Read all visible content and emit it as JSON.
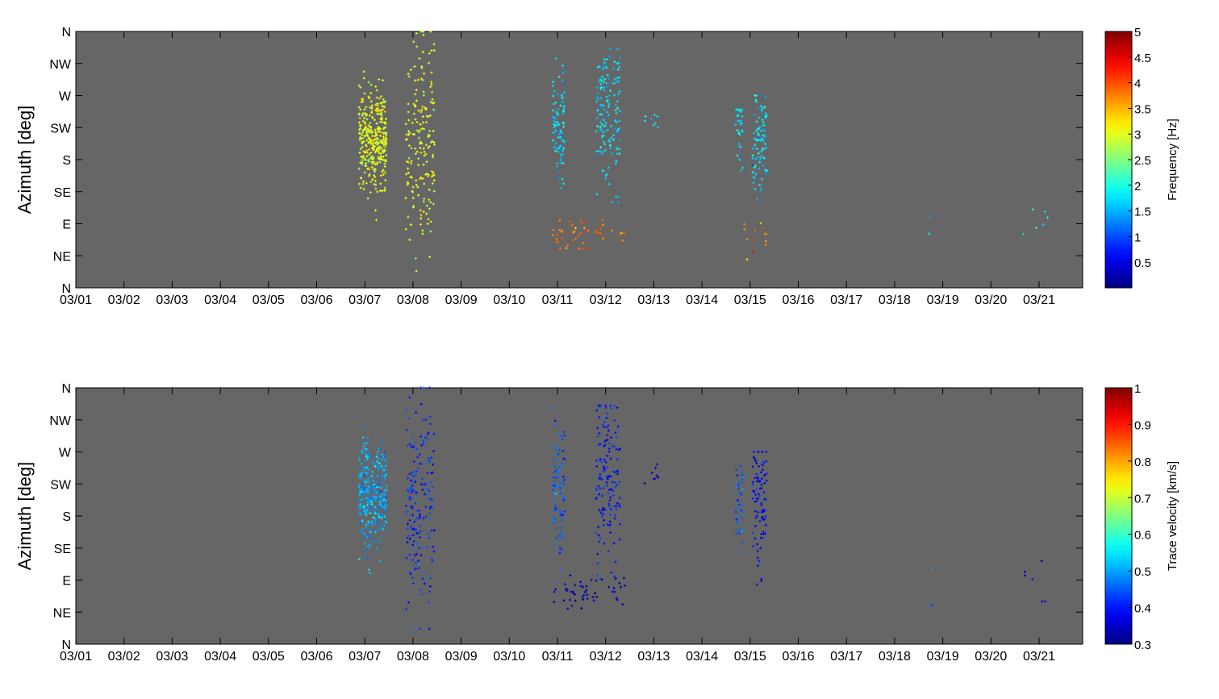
{
  "chart_data": [
    {
      "type": "scatter",
      "ylabel": "Azimuth [deg]",
      "x_ticks": [
        "03/01",
        "03/02",
        "03/03",
        "03/04",
        "03/05",
        "03/06",
        "03/07",
        "03/08",
        "03/09",
        "03/10",
        "03/11",
        "03/12",
        "03/13",
        "03/14",
        "03/15",
        "03/16",
        "03/17",
        "03/18",
        "03/19",
        "03/20",
        "03/21"
      ],
      "xlim": [
        "03/01",
        "03/22"
      ],
      "y_ticks": [
        "N",
        "NE",
        "E",
        "SE",
        "S",
        "SW",
        "W",
        "NW",
        "N"
      ],
      "ylim": [
        0,
        360
      ],
      "background_color": "#666666",
      "colorbar": {
        "label": "Frequency [Hz]",
        "min": 0,
        "max": 5,
        "ticks": [
          "0.5",
          "1",
          "1.5",
          "2",
          "2.5",
          "3",
          "3.5",
          "4",
          "4.5",
          "5"
        ]
      },
      "clusters": [
        {
          "day_start": 5.88,
          "day_end": 6.45,
          "az_min": 95,
          "az_max": 340,
          "value": 3.0,
          "count": 340,
          "az_center": 210,
          "az_spread": 35
        },
        {
          "day_start": 6.85,
          "day_end": 7.45,
          "az_min": 20,
          "az_max": 360,
          "value": 3.0,
          "count": 180,
          "az_center": 200,
          "az_spread": 70
        },
        {
          "day_start": 9.9,
          "day_end": 10.15,
          "az_min": 140,
          "az_max": 330,
          "value": 1.7,
          "count": 90,
          "az_center": 230,
          "az_spread": 40
        },
        {
          "day_start": 10.8,
          "day_end": 11.3,
          "az_min": 120,
          "az_max": 335,
          "value": 1.7,
          "count": 150,
          "az_center": 240,
          "az_spread": 50
        },
        {
          "day_start": 9.9,
          "day_end": 11.4,
          "az_min": 55,
          "az_max": 95,
          "value": 3.8,
          "count": 50,
          "az_center": 75,
          "az_spread": 12
        },
        {
          "day_start": 11.75,
          "day_end": 12.1,
          "az_min": 220,
          "az_max": 255,
          "value": 1.7,
          "count": 8,
          "az_center": 237,
          "az_spread": 10
        },
        {
          "day_start": 13.7,
          "day_end": 13.85,
          "az_min": 130,
          "az_max": 250,
          "value": 1.7,
          "count": 40,
          "az_center": 220,
          "az_spread": 25
        },
        {
          "day_start": 14.05,
          "day_end": 14.35,
          "az_min": 110,
          "az_max": 270,
          "value": 1.7,
          "count": 90,
          "az_center": 205,
          "az_spread": 40
        },
        {
          "day_start": 13.75,
          "day_end": 14.35,
          "az_min": 40,
          "az_max": 95,
          "value": 3.7,
          "count": 14,
          "az_center": 70,
          "az_spread": 15
        },
        {
          "day_start": 17.7,
          "day_end": 17.85,
          "az_min": 55,
          "az_max": 105,
          "value": 1.7,
          "count": 2,
          "az_center": 80,
          "az_spread": 20
        },
        {
          "day_start": 19.65,
          "day_end": 20.2,
          "az_min": 60,
          "az_max": 120,
          "value": 1.9,
          "count": 6,
          "az_center": 90,
          "az_spread": 20
        }
      ]
    },
    {
      "type": "scatter",
      "ylabel": "Azimuth [deg]",
      "x_ticks": [
        "03/01",
        "03/02",
        "03/03",
        "03/04",
        "03/05",
        "03/06",
        "03/07",
        "03/08",
        "03/09",
        "03/10",
        "03/11",
        "03/12",
        "03/13",
        "03/14",
        "03/15",
        "03/16",
        "03/17",
        "03/18",
        "03/19",
        "03/20",
        "03/21"
      ],
      "xlim": [
        "03/01",
        "03/22"
      ],
      "y_ticks": [
        "N",
        "NE",
        "E",
        "SE",
        "S",
        "SW",
        "W",
        "NW",
        "N"
      ],
      "ylim": [
        0,
        360
      ],
      "background_color": "#666666",
      "colorbar": {
        "label": "Trace velocity [km/s]",
        "min": 0.3,
        "max": 1,
        "ticks": [
          "0.3",
          "0.4",
          "0.5",
          "0.6",
          "0.7",
          "0.8",
          "0.9",
          "1"
        ]
      },
      "clusters": [
        {
          "day_start": 5.88,
          "day_end": 6.45,
          "az_min": 95,
          "az_max": 340,
          "value": 0.5,
          "count": 340,
          "az_center": 210,
          "az_spread": 35
        },
        {
          "day_start": 6.85,
          "day_end": 7.45,
          "az_min": 20,
          "az_max": 360,
          "value": 0.42,
          "count": 180,
          "az_center": 200,
          "az_spread": 70
        },
        {
          "day_start": 9.9,
          "day_end": 10.15,
          "az_min": 50,
          "az_max": 330,
          "value": 0.45,
          "count": 90,
          "az_center": 220,
          "az_spread": 50
        },
        {
          "day_start": 10.8,
          "day_end": 11.3,
          "az_min": 50,
          "az_max": 335,
          "value": 0.4,
          "count": 150,
          "az_center": 230,
          "az_spread": 55
        },
        {
          "day_start": 9.9,
          "day_end": 11.4,
          "az_min": 50,
          "az_max": 100,
          "value": 0.33,
          "count": 50,
          "az_center": 72,
          "az_spread": 12
        },
        {
          "day_start": 11.75,
          "day_end": 12.1,
          "az_min": 220,
          "az_max": 255,
          "value": 0.35,
          "count": 8,
          "az_center": 237,
          "az_spread": 10
        },
        {
          "day_start": 13.7,
          "day_end": 13.85,
          "az_min": 40,
          "az_max": 250,
          "value": 0.45,
          "count": 40,
          "az_center": 200,
          "az_spread": 40
        },
        {
          "day_start": 14.05,
          "day_end": 14.35,
          "az_min": 40,
          "az_max": 270,
          "value": 0.38,
          "count": 90,
          "az_center": 200,
          "az_spread": 45
        },
        {
          "day_start": 17.7,
          "day_end": 17.85,
          "az_min": 55,
          "az_max": 105,
          "value": 0.45,
          "count": 2,
          "az_center": 80,
          "az_spread": 20
        },
        {
          "day_start": 19.65,
          "day_end": 20.2,
          "az_min": 60,
          "az_max": 120,
          "value": 0.35,
          "count": 6,
          "az_center": 90,
          "az_spread": 20
        }
      ]
    }
  ]
}
